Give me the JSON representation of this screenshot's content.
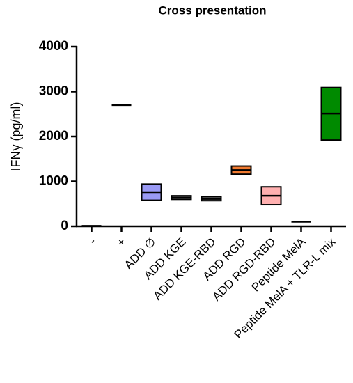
{
  "chart_data": {
    "type": "floating-bar",
    "title": "Cross presentation",
    "y_label": "IFNγ (pg/ml)",
    "categories": [
      "-",
      "+",
      "ADD ∅",
      "ADD KGE",
      "ADD KGE-RBD",
      "ADD RGD",
      "ADD RGD-RBD",
      "Peptide MelA",
      "Peptide MelA + TLR-L mix"
    ],
    "low": [
      null,
      null,
      580,
      600,
      570,
      1160,
      480,
      null,
      1920
    ],
    "high": [
      null,
      null,
      940,
      680,
      660,
      1340,
      880,
      null,
      3090
    ],
    "mean": [
      10,
      2700,
      760,
      640,
      610,
      1250,
      680,
      100,
      2510
    ],
    "colors": [
      "#000000",
      "#000000",
      "#9a9af5",
      "#7f7f7f",
      "#7f7f7f",
      "#f07a30",
      "#ffb0b0",
      "#000000",
      "#008a00"
    ],
    "ylim": [
      0,
      4000
    ],
    "yticks": [
      0,
      1000,
      2000,
      3000,
      4000
    ]
  }
}
